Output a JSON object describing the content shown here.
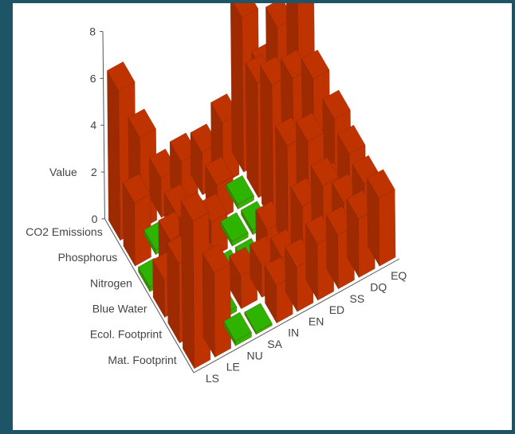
{
  "chart_data": {
    "type": "bar3d",
    "zlabel": "Value",
    "zlim": [
      0,
      8
    ],
    "zticks": [
      0,
      2,
      4,
      6,
      8
    ],
    "x_categories": [
      "LS",
      "LE",
      "NU",
      "SA",
      "IN",
      "EN",
      "ED",
      "SS",
      "DQ",
      "EQ"
    ],
    "y_categories": [
      "Mat. Footprint",
      "Ecol. Footprint",
      "Blue Water",
      "Nitrogen",
      "Phosphorus",
      "CO2 Emissions"
    ],
    "values": [
      [
        6.3,
        3.6,
        0.2,
        0.1,
        1.6,
        1.9,
        2.4,
        2.3,
        2.5,
        2.9
      ],
      [
        3.4,
        2.1,
        0.2,
        1.4,
        1.4,
        1.2,
        2.9,
        3.3,
        2.1,
        2.4
      ],
      [
        1.6,
        0.2,
        1.0,
        0.2,
        0.2,
        1.3,
        4.4,
        4.1,
        1.5,
        2.6
      ],
      [
        0.2,
        1.7,
        1.4,
        1.5,
        0.2,
        0.2,
        5.9,
        5.7,
        5.2,
        3.0
      ],
      [
        2.7,
        0.2,
        1.3,
        0.2,
        1.5,
        0.2,
        4.9,
        6.8,
        7.4,
        1.5
      ],
      [
        6.4,
        3.9,
        1.7,
        1.9,
        1.8,
        2.6,
        6.6,
        3.8,
        0.2,
        0.2
      ]
    ],
    "threshold": 1,
    "colors": {
      "above": "#bf3300",
      "below": "#2db300"
    }
  }
}
